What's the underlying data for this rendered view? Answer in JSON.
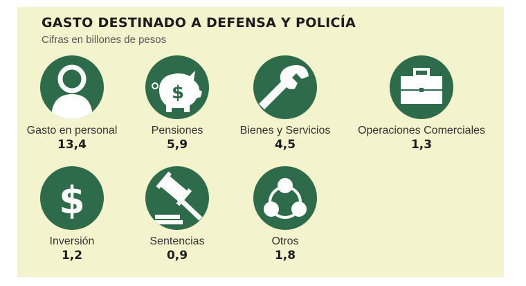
{
  "title": "GASTO DESTINADO A DEFENSA Y POLICÍA",
  "subtitle": "Cifras en billones de pesos",
  "accent": "#2e6b4a",
  "items": [
    {
      "label": "Gasto en personal",
      "value": "13,4",
      "icon": "person-icon"
    },
    {
      "label": "Pensiones",
      "value": "5,9",
      "icon": "piggy-bank-icon"
    },
    {
      "label": "Bienes y Servicios",
      "value": "4,5",
      "icon": "wrench-icon"
    },
    {
      "label": "Operaciones Comerciales",
      "value": "1,3",
      "icon": "briefcase-icon"
    },
    {
      "label": "Inversión",
      "value": "1,2",
      "icon": "dollar-icon"
    },
    {
      "label": "Sentencias",
      "value": "0,9",
      "icon": "gavel-icon"
    },
    {
      "label": "Otros",
      "value": "1,8",
      "icon": "network-icon"
    }
  ]
}
